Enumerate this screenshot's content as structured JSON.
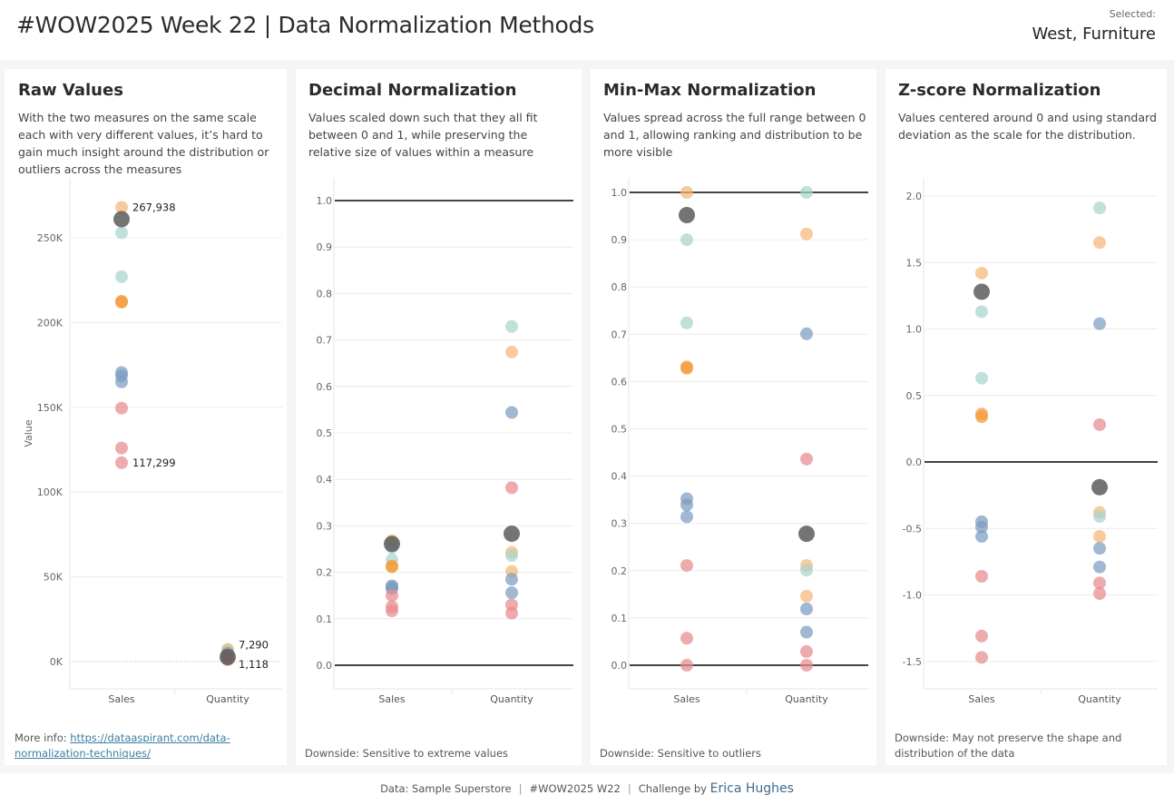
{
  "header": {
    "title": "#WOW2025 Week 22 | Data Normalization Methods",
    "selected_label": "Selected:",
    "selected_value": "West, Furniture"
  },
  "colors": {
    "teal": "#a7d4cf",
    "orange_light": "#f5b77a",
    "orange": "#f29b3c",
    "blue": "#7c9cc1",
    "blue_dark": "#5b83b3",
    "red": "#e88a8f",
    "highlight": "#555555",
    "zero_line": "#444444",
    "grid": "#ececec"
  },
  "panels": [
    {
      "title": "Raw Values",
      "description": "With the two measures on the same scale each with very different values, it’s hard to gain much insight around the distribution or outliers across the measures",
      "footer_prefix": "More info: ",
      "footer_link": "https://dataaspirant.com/data-normalization-techniques/",
      "footer_text": ""
    },
    {
      "title": "Decimal Normalization",
      "description": "Values scaled down such that they all fit between 0 and 1, while preserving the relative size of values within a measure",
      "footer_prefix": "",
      "footer_link": "",
      "footer_text": "Downside: Sensitive to extreme values"
    },
    {
      "title": "Min-Max Normalization",
      "description": "Values spread across the full range between 0 and 1, allowing ranking and distribution to be more visible",
      "footer_prefix": "",
      "footer_link": "",
      "footer_text": "Downside: Sensitive to outliers"
    },
    {
      "title": "Z-score Normalization",
      "description": "Values centered around 0 and using standard deviation as the scale for the distribution.",
      "footer_prefix": "",
      "footer_link": "",
      "footer_text": "Downside: May not preserve the shape and distribution of the data"
    }
  ],
  "chart_data": [
    {
      "type": "scatter",
      "title": "Raw Values",
      "xlabel": "",
      "ylabel": "Value",
      "categories": [
        "Sales",
        "Quantity"
      ],
      "ylim": [
        -16000,
        285000
      ],
      "yticks": [
        0,
        50000,
        100000,
        150000,
        200000,
        250000
      ],
      "ytick_labels": [
        "0K",
        "50K",
        "100K",
        "150K",
        "200K",
        "250K"
      ],
      "ref_lines": [],
      "dotted_zero": true,
      "series": [
        {
          "name": "Sales",
          "points": [
            {
              "y": 267938,
              "color": "orange_light",
              "label": "267,938"
            },
            {
              "y": 253000,
              "color": "teal"
            },
            {
              "y": 227000,
              "color": "teal"
            },
            {
              "y": 212500,
              "color": "orange"
            },
            {
              "y": 212000,
              "color": "orange"
            },
            {
              "y": 170500,
              "color": "blue"
            },
            {
              "y": 168500,
              "color": "blue"
            },
            {
              "y": 165000,
              "color": "blue"
            },
            {
              "y": 149500,
              "color": "red"
            },
            {
              "y": 126000,
              "color": "red"
            },
            {
              "y": 117299,
              "color": "red",
              "label": "117,299"
            },
            {
              "y": 261000,
              "color": "highlight",
              "selected": true
            }
          ]
        },
        {
          "name": "Quantity",
          "points": [
            {
              "y": 7290,
              "color": "teal",
              "label": "7,290"
            },
            {
              "y": 6800,
              "color": "orange_light"
            },
            {
              "y": 5000,
              "color": "blue"
            },
            {
              "y": 3000,
              "color": "red"
            },
            {
              "y": 1118,
              "color": "red",
              "label": "1,118"
            },
            {
              "y": 2700,
              "color": "highlight",
              "selected": true
            }
          ]
        }
      ]
    },
    {
      "type": "scatter",
      "title": "Decimal Normalization",
      "categories": [
        "Sales",
        "Quantity"
      ],
      "ylim": [
        -0.05,
        1.05
      ],
      "yticks": [
        0.0,
        0.1,
        0.2,
        0.3,
        0.4,
        0.5,
        0.6,
        0.7,
        0.8,
        0.9,
        1.0
      ],
      "ytick_labels": [
        "0.0",
        "0.1",
        "0.2",
        "0.3",
        "0.4",
        "0.5",
        "0.6",
        "0.7",
        "0.8",
        "0.9",
        "1.0"
      ],
      "ref_lines": [
        0.0,
        1.0
      ],
      "series": [
        {
          "name": "Sales",
          "points": [
            {
              "y": 0.268,
              "color": "orange_light"
            },
            {
              "y": 0.253,
              "color": "teal"
            },
            {
              "y": 0.227,
              "color": "teal"
            },
            {
              "y": 0.213,
              "color": "orange"
            },
            {
              "y": 0.212,
              "color": "orange"
            },
            {
              "y": 0.171,
              "color": "blue"
            },
            {
              "y": 0.168,
              "color": "blue"
            },
            {
              "y": 0.165,
              "color": "blue"
            },
            {
              "y": 0.15,
              "color": "red"
            },
            {
              "y": 0.126,
              "color": "red"
            },
            {
              "y": 0.117,
              "color": "red"
            },
            {
              "y": 0.261,
              "color": "highlight",
              "selected": true
            }
          ]
        },
        {
          "name": "Quantity",
          "points": [
            {
              "y": 0.729,
              "color": "teal"
            },
            {
              "y": 0.674,
              "color": "orange_light"
            },
            {
              "y": 0.544,
              "color": "blue"
            },
            {
              "y": 0.382,
              "color": "red"
            },
            {
              "y": 0.243,
              "color": "orange_light"
            },
            {
              "y": 0.236,
              "color": "teal"
            },
            {
              "y": 0.202,
              "color": "orange_light"
            },
            {
              "y": 0.185,
              "color": "blue"
            },
            {
              "y": 0.156,
              "color": "blue"
            },
            {
              "y": 0.13,
              "color": "red"
            },
            {
              "y": 0.112,
              "color": "red"
            },
            {
              "y": 0.283,
              "color": "highlight",
              "selected": true
            }
          ]
        }
      ]
    },
    {
      "type": "scatter",
      "title": "Min-Max Normalization",
      "categories": [
        "Sales",
        "Quantity"
      ],
      "ylim": [
        -0.05,
        1.05
      ],
      "yticks": [
        0.0,
        0.1,
        0.2,
        0.3,
        0.4,
        0.5,
        0.6,
        0.7,
        0.8,
        0.9,
        1.0
      ],
      "ytick_labels": [
        "0.0",
        "0.1",
        "0.2",
        "0.3",
        "0.4",
        "0.5",
        "0.6",
        "0.7",
        "0.8",
        "0.9",
        "1.0"
      ],
      "ref_lines": [
        0.0,
        1.0
      ],
      "series": [
        {
          "name": "Sales",
          "points": [
            {
              "y": 1.0,
              "color": "orange_light"
            },
            {
              "y": 0.9,
              "color": "teal"
            },
            {
              "y": 0.724,
              "color": "teal"
            },
            {
              "y": 0.631,
              "color": "orange"
            },
            {
              "y": 0.628,
              "color": "orange"
            },
            {
              "y": 0.352,
              "color": "blue"
            },
            {
              "y": 0.339,
              "color": "blue"
            },
            {
              "y": 0.314,
              "color": "blue"
            },
            {
              "y": 0.211,
              "color": "red"
            },
            {
              "y": 0.057,
              "color": "red"
            },
            {
              "y": 0.0,
              "color": "red"
            },
            {
              "y": 0.952,
              "color": "highlight",
              "selected": true
            }
          ]
        },
        {
          "name": "Quantity",
          "points": [
            {
              "y": 1.0,
              "color": "teal"
            },
            {
              "y": 0.912,
              "color": "orange_light"
            },
            {
              "y": 0.701,
              "color": "blue"
            },
            {
              "y": 0.436,
              "color": "red"
            },
            {
              "y": 0.211,
              "color": "orange_light"
            },
            {
              "y": 0.201,
              "color": "teal"
            },
            {
              "y": 0.146,
              "color": "orange_light"
            },
            {
              "y": 0.119,
              "color": "blue"
            },
            {
              "y": 0.07,
              "color": "blue"
            },
            {
              "y": 0.029,
              "color": "red"
            },
            {
              "y": 0.0,
              "color": "red"
            },
            {
              "y": 0.278,
              "color": "highlight",
              "selected": true
            }
          ]
        }
      ]
    },
    {
      "type": "scatter",
      "title": "Z-score Normalization",
      "categories": [
        "Sales",
        "Quantity"
      ],
      "ylim": [
        -1.7,
        2.13
      ],
      "yticks": [
        -1.5,
        -1.0,
        -0.5,
        0.0,
        0.5,
        1.0,
        1.5,
        2.0
      ],
      "ytick_labels": [
        "-1.5",
        "-1.0",
        "-0.5",
        "0.0",
        "0.5",
        "1.0",
        "1.5",
        "2.0"
      ],
      "ref_lines": [
        0.0
      ],
      "series": [
        {
          "name": "Sales",
          "points": [
            {
              "y": 1.42,
              "color": "orange_light"
            },
            {
              "y": 1.13,
              "color": "teal"
            },
            {
              "y": 0.63,
              "color": "teal"
            },
            {
              "y": 0.36,
              "color": "orange"
            },
            {
              "y": 0.34,
              "color": "orange"
            },
            {
              "y": -0.45,
              "color": "blue"
            },
            {
              "y": -0.49,
              "color": "blue"
            },
            {
              "y": -0.56,
              "color": "blue"
            },
            {
              "y": -0.86,
              "color": "red"
            },
            {
              "y": -1.31,
              "color": "red"
            },
            {
              "y": -1.47,
              "color": "red"
            },
            {
              "y": 1.28,
              "color": "highlight",
              "selected": true
            }
          ]
        },
        {
          "name": "Quantity",
          "points": [
            {
              "y": 1.91,
              "color": "teal"
            },
            {
              "y": 1.65,
              "color": "orange_light"
            },
            {
              "y": 1.04,
              "color": "blue"
            },
            {
              "y": 0.28,
              "color": "red"
            },
            {
              "y": -0.38,
              "color": "orange_light"
            },
            {
              "y": -0.41,
              "color": "teal"
            },
            {
              "y": -0.56,
              "color": "orange_light"
            },
            {
              "y": -0.65,
              "color": "blue"
            },
            {
              "y": -0.79,
              "color": "blue"
            },
            {
              "y": -0.91,
              "color": "red"
            },
            {
              "y": -0.99,
              "color": "red"
            },
            {
              "y": -0.19,
              "color": "highlight",
              "selected": true
            }
          ]
        }
      ]
    }
  ],
  "footer": {
    "data_source": "Data: Sample Superstore",
    "tag": "#WOW2025 W22",
    "challenge_prefix": "Challenge by",
    "author": "Erica Hughes"
  }
}
